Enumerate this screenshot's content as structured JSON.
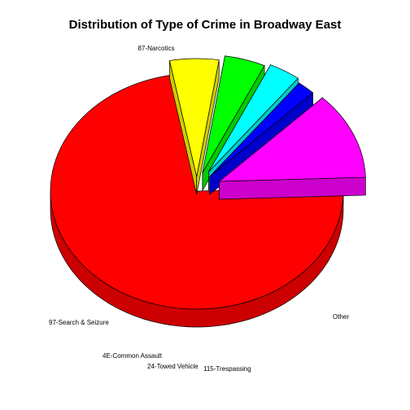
{
  "chart_data": {
    "type": "pie",
    "title": "Distribution of Type of Crime in Broadway East",
    "slices": [
      {
        "label": "87-Narcotics",
        "value": 72.6,
        "color": "#ff0000"
      },
      {
        "label": "97-Search & Seizure",
        "value": 5.4,
        "color": "#ffff00"
      },
      {
        "label": "4E-Common Assault",
        "value": 4.5,
        "color": "#00ff00"
      },
      {
        "label": "24-Towed Vehicle",
        "value": 3.5,
        "color": "#00ffff"
      },
      {
        "label": "115-Trespassing",
        "value": 2.0,
        "color": "#0000ff"
      },
      {
        "label": "Other",
        "value": 12.0,
        "color": "#ff00ff"
      }
    ]
  }
}
